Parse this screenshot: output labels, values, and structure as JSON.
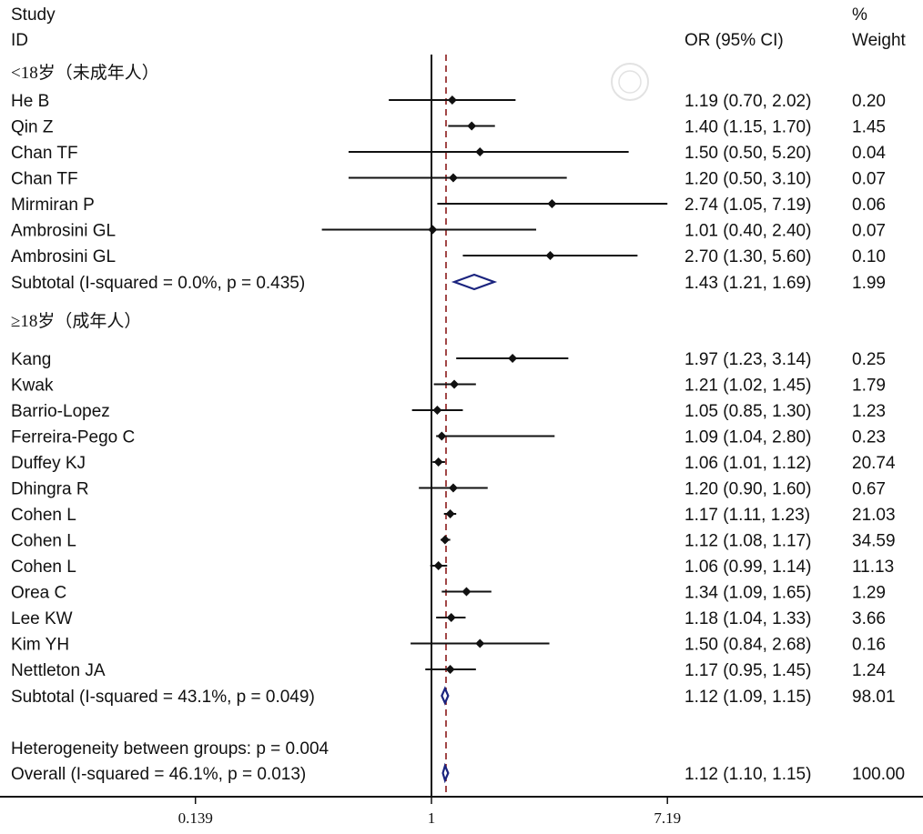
{
  "header": {
    "study_line1": "Study",
    "study_line2": "ID",
    "or_label": "OR (95% CI)",
    "weight_line1": "%",
    "weight_line2": "Weight"
  },
  "chart_data": {
    "type": "forest",
    "x_scale": "log",
    "xlim": [
      0.139,
      7.19
    ],
    "null_line": 1,
    "overall_line": 1.12,
    "xticks": [
      {
        "value": 0.139,
        "label": "0.139"
      },
      {
        "value": 1,
        "label": "1"
      },
      {
        "value": 7.19,
        "label": "7.19"
      }
    ],
    "groups": [
      {
        "label": "<18岁（未成年人）",
        "studies": [
          {
            "id": "He B",
            "or": 1.19,
            "lo": 0.7,
            "hi": 2.02,
            "text": "1.19 (0.70, 2.02)",
            "weight": "0.20"
          },
          {
            "id": "Qin Z",
            "or": 1.4,
            "lo": 1.15,
            "hi": 1.7,
            "text": "1.40 (1.15, 1.70)",
            "weight": "1.45"
          },
          {
            "id": "Chan TF",
            "or": 1.5,
            "lo": 0.5,
            "hi": 5.2,
            "text": "1.50 (0.50, 5.20)",
            "weight": "0.04"
          },
          {
            "id": "Chan TF",
            "or": 1.2,
            "lo": 0.5,
            "hi": 3.1,
            "text": "1.20 (0.50, 3.10)",
            "weight": "0.07"
          },
          {
            "id": "Mirmiran  P",
            "or": 2.74,
            "lo": 1.05,
            "hi": 7.19,
            "text": "2.74 (1.05, 7.19)",
            "weight": "0.06"
          },
          {
            "id": "Ambrosini GL",
            "or": 1.01,
            "lo": 0.4,
            "hi": 2.4,
            "text": "1.01 (0.40, 2.40)",
            "weight": "0.07"
          },
          {
            "id": "Ambrosini GL",
            "or": 2.7,
            "lo": 1.3,
            "hi": 5.6,
            "text": "2.70 (1.30, 5.60)",
            "weight": "0.10"
          }
        ],
        "subtotal": {
          "label": "Subtotal  (I-squared = 0.0%, p = 0.435)",
          "or": 1.43,
          "lo": 1.21,
          "hi": 1.69,
          "text": "1.43 (1.21, 1.69)",
          "weight": "1.99"
        }
      },
      {
        "label": "≥18岁（成年人）",
        "studies": [
          {
            "id": "Kang",
            "or": 1.97,
            "lo": 1.23,
            "hi": 3.14,
            "text": "1.97 (1.23, 3.14)",
            "weight": "0.25"
          },
          {
            "id": "Kwak",
            "or": 1.21,
            "lo": 1.02,
            "hi": 1.45,
            "text": "1.21 (1.02, 1.45)",
            "weight": "1.79"
          },
          {
            "id": "Barrio-Lopez",
            "or": 1.05,
            "lo": 0.85,
            "hi": 1.3,
            "text": "1.05 (0.85, 1.30)",
            "weight": "1.23"
          },
          {
            "id": "Ferreira-Pego C",
            "or": 1.09,
            "lo": 1.04,
            "hi": 2.8,
            "text": "1.09 (1.04, 2.80)",
            "weight": "0.23"
          },
          {
            "id": "Duffey KJ",
            "or": 1.06,
            "lo": 1.01,
            "hi": 1.12,
            "text": "1.06 (1.01, 1.12)",
            "weight": "20.74"
          },
          {
            "id": "Dhingra R",
            "or": 1.2,
            "lo": 0.9,
            "hi": 1.6,
            "text": "1.20 (0.90, 1.60)",
            "weight": "0.67"
          },
          {
            "id": "Cohen L",
            "or": 1.17,
            "lo": 1.11,
            "hi": 1.23,
            "text": "1.17 (1.11, 1.23)",
            "weight": "21.03"
          },
          {
            "id": "Cohen L",
            "or": 1.12,
            "lo": 1.08,
            "hi": 1.17,
            "text": "1.12 (1.08, 1.17)",
            "weight": "34.59"
          },
          {
            "id": "Cohen L",
            "or": 1.06,
            "lo": 0.99,
            "hi": 1.14,
            "text": "1.06 (0.99, 1.14)",
            "weight": "11.13"
          },
          {
            "id": "Orea C",
            "or": 1.34,
            "lo": 1.09,
            "hi": 1.65,
            "text": "1.34 (1.09, 1.65)",
            "weight": "1.29"
          },
          {
            "id": "Lee KW",
            "or": 1.18,
            "lo": 1.04,
            "hi": 1.33,
            "text": "1.18 (1.04, 1.33)",
            "weight": "3.66"
          },
          {
            "id": "Kim YH",
            "or": 1.5,
            "lo": 0.84,
            "hi": 2.68,
            "text": "1.50 (0.84, 2.68)",
            "weight": "0.16"
          },
          {
            "id": "Nettleton JA",
            "or": 1.17,
            "lo": 0.95,
            "hi": 1.45,
            "text": "1.17 (0.95, 1.45)",
            "weight": "1.24"
          }
        ],
        "subtotal": {
          "label": "Subtotal  (I-squared = 43.1%, p = 0.049)",
          "or": 1.12,
          "lo": 1.09,
          "hi": 1.15,
          "text": "1.12 (1.09, 1.15)",
          "weight": "98.01"
        }
      }
    ],
    "heterogeneity": "Heterogeneity between groups: p = 0.004",
    "overall": {
      "label": "Overall  (I-squared = 46.1%, p = 0.013)",
      "or": 1.12,
      "lo": 1.1,
      "hi": 1.15,
      "text": "1.12 (1.10, 1.15)",
      "weight": "100.00"
    },
    "colors": {
      "marker": "#111111",
      "diamond": "#1a237e",
      "ref_line": "#8b1a1a"
    }
  }
}
